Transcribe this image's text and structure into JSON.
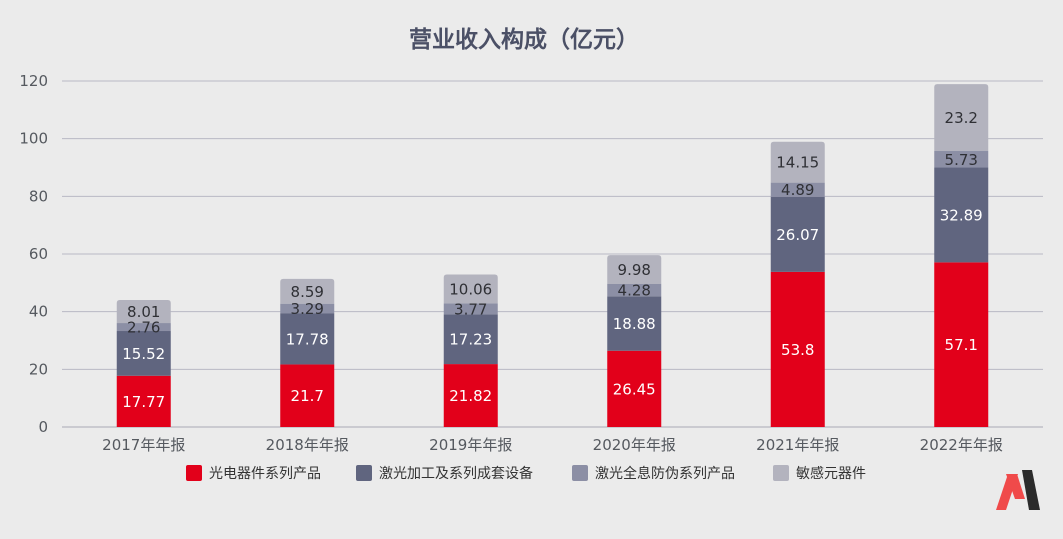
{
  "chart_data": {
    "type": "bar",
    "stacked": true,
    "title": "营业收入构成（亿元）",
    "categories": [
      "2017年年报",
      "2018年年报",
      "2019年年报",
      "2020年年报",
      "2021年年报",
      "2022年年报"
    ],
    "series": [
      {
        "name": "光电器件系列产品",
        "color": "#e2001a",
        "label_color": "#ffffff",
        "values": [
          17.77,
          21.7,
          21.82,
          26.45,
          53.8,
          57.1
        ]
      },
      {
        "name": "激光加工及系列成套设备",
        "color": "#60657f",
        "label_color": "#ffffff",
        "values": [
          15.52,
          17.78,
          17.23,
          18.88,
          26.07,
          32.89
        ]
      },
      {
        "name": "激光全息防伪系列产品",
        "color": "#8c8fa5",
        "label_color": "#2f3035",
        "values": [
          2.76,
          3.29,
          3.77,
          4.28,
          4.89,
          5.73
        ]
      },
      {
        "name": "敏感元器件",
        "color": "#b3b3be",
        "label_color": "#2f3035",
        "values": [
          8.01,
          8.59,
          10.06,
          9.98,
          14.15,
          23.2
        ]
      }
    ],
    "ylim": [
      0,
      120
    ],
    "yticks": [
      0,
      20,
      40,
      60,
      80,
      100,
      120
    ],
    "xlabel": "",
    "ylabel": "",
    "grid": true,
    "legend_position": "bottom"
  },
  "logo": {
    "name": "brand-logo",
    "colors": [
      "#f04a4a",
      "#2b2b2b"
    ]
  }
}
